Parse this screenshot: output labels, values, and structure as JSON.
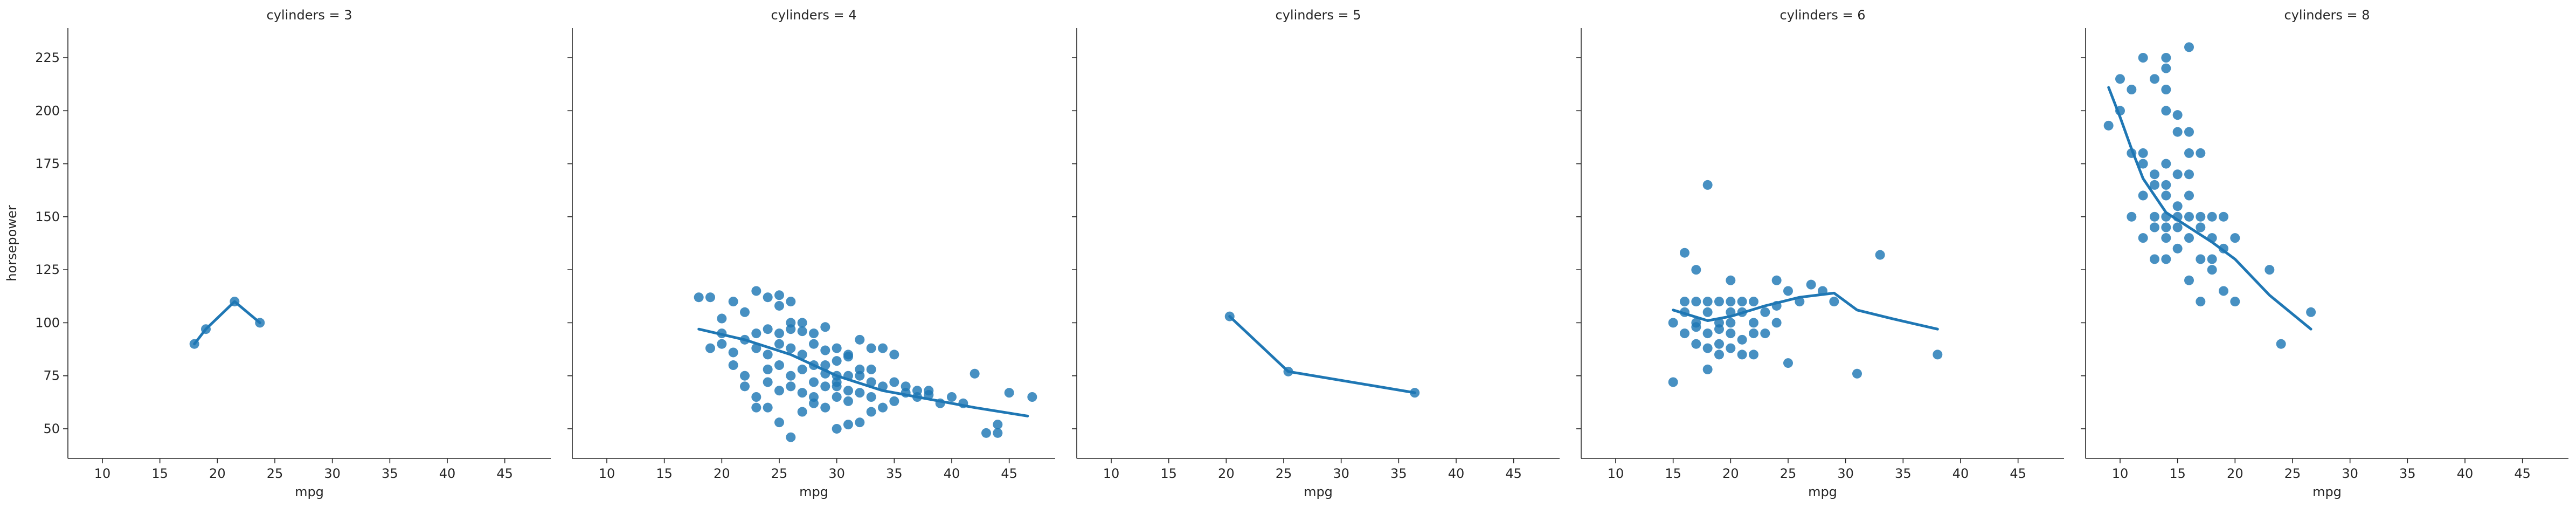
{
  "figure": {
    "ylabel": "horsepower",
    "xlabel": "mpg"
  },
  "chart_data": [
    {
      "type": "scatter",
      "title": "cylinders = 3",
      "xlabel": "mpg",
      "ylabel": "horsepower",
      "xlim": [
        7,
        49
      ],
      "ylim": [
        36,
        239
      ],
      "xticks": [
        10,
        15,
        20,
        25,
        30,
        35,
        40,
        45
      ],
      "yticks": [
        50,
        75,
        100,
        125,
        150,
        175,
        200,
        225
      ],
      "color": "#1f77b4",
      "points": [
        [
          18.0,
          90
        ],
        [
          19.0,
          97
        ],
        [
          21.5,
          110
        ],
        [
          23.7,
          100
        ]
      ],
      "trend": [
        [
          18.0,
          90
        ],
        [
          19.0,
          97
        ],
        [
          21.5,
          110
        ],
        [
          23.7,
          100
        ]
      ]
    },
    {
      "type": "scatter",
      "title": "cylinders = 4",
      "xlabel": "mpg",
      "ylabel": "",
      "xlim": [
        7,
        49
      ],
      "ylim": [
        36,
        239
      ],
      "xticks": [
        10,
        15,
        20,
        25,
        30,
        35,
        40,
        45
      ],
      "yticks": [
        50,
        75,
        100,
        125,
        150,
        175,
        200,
        225
      ],
      "color": "#1f77b4",
      "points": [
        [
          18,
          112
        ],
        [
          19,
          112
        ],
        [
          19,
          88
        ],
        [
          20,
          102
        ],
        [
          21,
          110
        ],
        [
          22,
          105
        ],
        [
          23,
          115
        ],
        [
          24,
          112
        ],
        [
          25,
          113
        ],
        [
          26,
          110
        ],
        [
          20,
          95
        ],
        [
          21,
          86
        ],
        [
          22,
          92
        ],
        [
          23,
          95
        ],
        [
          24,
          97
        ],
        [
          25,
          95
        ],
        [
          26,
          97
        ],
        [
          27,
          96
        ],
        [
          28,
          95
        ],
        [
          29,
          98
        ],
        [
          21,
          80
        ],
        [
          22,
          75
        ],
        [
          23,
          88
        ],
        [
          24,
          85
        ],
        [
          25,
          90
        ],
        [
          26,
          88
        ],
        [
          27,
          85
        ],
        [
          28,
          90
        ],
        [
          29,
          87
        ],
        [
          30,
          88
        ],
        [
          22,
          70
        ],
        [
          23,
          65
        ],
        [
          24,
          78
        ],
        [
          25,
          80
        ],
        [
          26,
          75
        ],
        [
          27,
          78
        ],
        [
          28,
          80
        ],
        [
          29,
          76
        ],
        [
          30,
          82
        ],
        [
          31,
          85
        ],
        [
          24,
          60
        ],
        [
          25,
          68
        ],
        [
          26,
          70
        ],
        [
          27,
          67
        ],
        [
          28,
          65
        ],
        [
          29,
          70
        ],
        [
          30,
          72
        ],
        [
          31,
          75
        ],
        [
          32,
          78
        ],
        [
          33,
          88
        ],
        [
          25,
          53
        ],
        [
          26,
          46
        ],
        [
          27,
          58
        ],
        [
          28,
          62
        ],
        [
          29,
          60
        ],
        [
          30,
          65
        ],
        [
          31,
          68
        ],
        [
          32,
          67
        ],
        [
          33,
          72
        ],
        [
          34,
          70
        ],
        [
          30,
          50
        ],
        [
          31,
          52
        ],
        [
          32,
          53
        ],
        [
          33,
          58
        ],
        [
          34,
          60
        ],
        [
          35,
          63
        ],
        [
          36,
          67
        ],
        [
          37,
          65
        ],
        [
          38,
          68
        ],
        [
          39,
          62
        ],
        [
          34,
          88
        ],
        [
          35,
          85
        ],
        [
          33,
          78
        ],
        [
          32,
          92
        ],
        [
          31,
          84
        ],
        [
          30,
          75
        ],
        [
          35,
          72
        ],
        [
          36,
          70
        ],
        [
          37,
          68
        ],
        [
          38,
          66
        ],
        [
          40,
          65
        ],
        [
          41,
          62
        ],
        [
          42,
          76
        ],
        [
          43,
          48
        ],
        [
          44,
          52
        ],
        [
          44,
          48
        ],
        [
          45,
          67
        ],
        [
          47,
          65
        ],
        [
          20,
          90
        ],
        [
          26,
          100
        ],
        [
          27,
          100
        ],
        [
          25,
          108
        ],
        [
          24,
          72
        ],
        [
          23,
          60
        ],
        [
          28,
          72
        ],
        [
          29,
          80
        ],
        [
          30,
          70
        ],
        [
          31,
          63
        ],
        [
          32,
          75
        ],
        [
          33,
          65
        ]
      ],
      "trend": [
        [
          18,
          97
        ],
        [
          22,
          92
        ],
        [
          26,
          85
        ],
        [
          30,
          75
        ],
        [
          34,
          68
        ],
        [
          38,
          64
        ],
        [
          42,
          60
        ],
        [
          46.6,
          56
        ]
      ]
    },
    {
      "type": "scatter",
      "title": "cylinders = 5",
      "xlabel": "mpg",
      "ylabel": "",
      "xlim": [
        7,
        49
      ],
      "ylim": [
        36,
        239
      ],
      "xticks": [
        10,
        15,
        20,
        25,
        30,
        35,
        40,
        45
      ],
      "yticks": [
        50,
        75,
        100,
        125,
        150,
        175,
        200,
        225
      ],
      "color": "#1f77b4",
      "points": [
        [
          20.3,
          103
        ],
        [
          25.4,
          77
        ],
        [
          36.4,
          67
        ]
      ],
      "trend": [
        [
          20.3,
          103
        ],
        [
          25.4,
          77
        ],
        [
          36.4,
          67
        ]
      ]
    },
    {
      "type": "scatter",
      "title": "cylinders = 6",
      "xlabel": "mpg",
      "ylabel": "",
      "xlim": [
        7,
        49
      ],
      "ylim": [
        36,
        239
      ],
      "xticks": [
        10,
        15,
        20,
        25,
        30,
        35,
        40,
        45
      ],
      "yticks": [
        50,
        75,
        100,
        125,
        150,
        175,
        200,
        225
      ],
      "color": "#1f77b4",
      "points": [
        [
          15,
          72
        ],
        [
          15,
          100
        ],
        [
          16,
          105
        ],
        [
          16,
          110
        ],
        [
          17,
          100
        ],
        [
          17,
          110
        ],
        [
          18,
          105
        ],
        [
          18,
          110
        ],
        [
          19,
          100
        ],
        [
          19,
          110
        ],
        [
          20,
          100
        ],
        [
          20,
          110
        ],
        [
          21,
          105
        ],
        [
          21,
          110
        ],
        [
          22,
          95
        ],
        [
          22,
          100
        ],
        [
          18,
          165
        ],
        [
          16,
          133
        ],
        [
          17,
          125
        ],
        [
          20,
          120
        ],
        [
          19,
          90
        ],
        [
          20,
          88
        ],
        [
          21,
          85
        ],
        [
          22,
          85
        ],
        [
          18,
          95
        ],
        [
          17,
          90
        ],
        [
          19,
          97
        ],
        [
          20,
          95
        ],
        [
          24,
          120
        ],
        [
          25,
          115
        ],
        [
          26,
          110
        ],
        [
          27,
          118
        ],
        [
          28,
          115
        ],
        [
          29,
          110
        ],
        [
          33,
          132
        ],
        [
          31,
          76
        ],
        [
          38,
          85
        ],
        [
          25,
          81
        ],
        [
          18,
          78
        ],
        [
          19,
          85
        ],
        [
          22,
          110
        ],
        [
          23,
          105
        ],
        [
          24,
          108
        ],
        [
          16,
          95
        ],
        [
          17,
          98
        ],
        [
          18,
          88
        ],
        [
          21,
          92
        ],
        [
          23,
          95
        ],
        [
          24,
          100
        ],
        [
          20,
          105
        ]
      ],
      "trend": [
        [
          15,
          106
        ],
        [
          18,
          101
        ],
        [
          20,
          103
        ],
        [
          23,
          108
        ],
        [
          26,
          112
        ],
        [
          29,
          114
        ],
        [
          31,
          106
        ],
        [
          34,
          102
        ],
        [
          38,
          97
        ]
      ]
    },
    {
      "type": "scatter",
      "title": "cylinders = 8",
      "xlabel": "mpg",
      "ylabel": "",
      "xlim": [
        7,
        49
      ],
      "ylim": [
        36,
        239
      ],
      "xticks": [
        10,
        15,
        20,
        25,
        30,
        35,
        40,
        45
      ],
      "yticks": [
        50,
        75,
        100,
        125,
        150,
        175,
        200,
        225
      ],
      "color": "#1f77b4",
      "points": [
        [
          9,
          193
        ],
        [
          10,
          215
        ],
        [
          10,
          200
        ],
        [
          11,
          210
        ],
        [
          11,
          180
        ],
        [
          12,
          225
        ],
        [
          12,
          180
        ],
        [
          13,
          215
        ],
        [
          13,
          170
        ],
        [
          14,
          225
        ],
        [
          14,
          220
        ],
        [
          14,
          210
        ],
        [
          14,
          200
        ],
        [
          15,
          198
        ],
        [
          15,
          190
        ],
        [
          16,
          230
        ],
        [
          16,
          190
        ],
        [
          16,
          180
        ],
        [
          17,
          180
        ],
        [
          11,
          150
        ],
        [
          12,
          160
        ],
        [
          13,
          165
        ],
        [
          13,
          150
        ],
        [
          14,
          175
        ],
        [
          14,
          165
        ],
        [
          14,
          150
        ],
        [
          15,
          150
        ],
        [
          15,
          145
        ],
        [
          16,
          150
        ],
        [
          16,
          140
        ],
        [
          17,
          150
        ],
        [
          17,
          145
        ],
        [
          18,
          150
        ],
        [
          18,
          140
        ],
        [
          19,
          150
        ],
        [
          19,
          135
        ],
        [
          20,
          140
        ],
        [
          13,
          130
        ],
        [
          14,
          130
        ],
        [
          15,
          135
        ],
        [
          16,
          120
        ],
        [
          17,
          110
        ],
        [
          18,
          125
        ],
        [
          19,
          115
        ],
        [
          20,
          110
        ],
        [
          14,
          140
        ],
        [
          15,
          155
        ],
        [
          17,
          130
        ],
        [
          18,
          130
        ],
        [
          23,
          125
        ],
        [
          24,
          90
        ],
        [
          26.6,
          105
        ],
        [
          12,
          175
        ],
        [
          13,
          145
        ],
        [
          16,
          170
        ],
        [
          16,
          160
        ],
        [
          15,
          170
        ],
        [
          14,
          160
        ],
        [
          12,
          140
        ],
        [
          14,
          145
        ]
      ],
      "trend": [
        [
          9,
          211
        ],
        [
          10,
          197
        ],
        [
          11,
          182
        ],
        [
          12,
          168
        ],
        [
          14,
          152
        ],
        [
          16,
          145
        ],
        [
          18,
          138
        ],
        [
          20,
          130
        ],
        [
          23,
          113
        ],
        [
          26.6,
          97
        ]
      ]
    }
  ]
}
